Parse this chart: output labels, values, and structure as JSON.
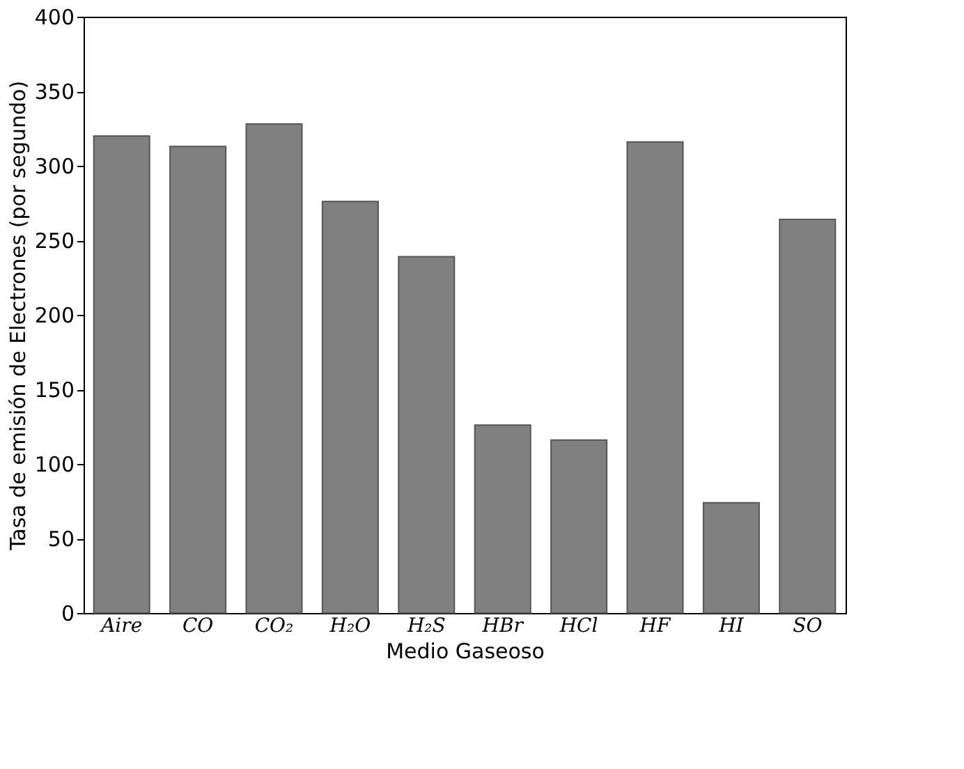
{
  "chart_data": {
    "type": "bar",
    "xlabel": "Medio Gaseoso",
    "ylabel": "Tasa de emisión de Electrones (por segundo)",
    "categories": [
      "Aire",
      "CO",
      "CO₂",
      "H₂O",
      "H₂S",
      "HBr",
      "HCl",
      "HF",
      "HI",
      "SO"
    ],
    "values": [
      320,
      313,
      328,
      276,
      239,
      126,
      116,
      316,
      74,
      264
    ],
    "color": "#808080",
    "ylim": [
      0,
      400
    ],
    "yticks": [
      0,
      50,
      100,
      150,
      200,
      250,
      300,
      350,
      400
    ],
    "grid": false
  }
}
